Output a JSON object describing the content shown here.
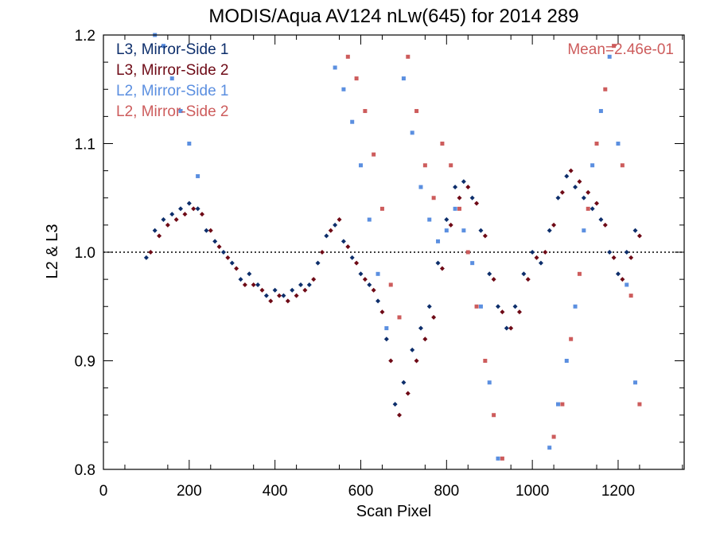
{
  "chart_data": {
    "type": "scatter",
    "title": "MODIS/Aqua AV124 nLw(645) for 2014 289",
    "xlabel": "Scan Pixel",
    "ylabel": "L2 & L3",
    "xlim": [
      0,
      1354
    ],
    "ylim": [
      0.8,
      1.2
    ],
    "xticks": [
      "0",
      "200",
      "400",
      "600",
      "800",
      "1000",
      "1200"
    ],
    "yticks": [
      "0.8",
      "0.9",
      "1.0",
      "1.1",
      "1.2"
    ],
    "reference_line": 1.0,
    "annotation": "Mean=2.46e-01",
    "annotation_color": "#cd5c5c",
    "legend_position": "top-left",
    "series": [
      {
        "name": "L3, Mirror-Side 1",
        "color": "#0d2e6b",
        "marker": "diamond",
        "x": [
          100,
          120,
          140,
          160,
          180,
          200,
          220,
          240,
          260,
          280,
          300,
          320,
          340,
          360,
          380,
          400,
          420,
          440,
          460,
          480,
          500,
          520,
          540,
          560,
          580,
          600,
          620,
          640,
          660,
          680,
          700,
          720,
          740,
          760,
          780,
          800,
          820,
          840,
          860,
          880,
          900,
          920,
          940,
          960,
          980,
          1000,
          1020,
          1040,
          1060,
          1080,
          1100,
          1120,
          1140,
          1160,
          1180,
          1200,
          1220,
          1240
        ],
        "y": [
          0.995,
          1.02,
          1.03,
          1.035,
          1.04,
          1.045,
          1.04,
          1.02,
          1.01,
          1.0,
          0.99,
          0.975,
          0.98,
          0.97,
          0.96,
          0.965,
          0.96,
          0.965,
          0.97,
          0.97,
          0.99,
          1.015,
          1.025,
          1.01,
          0.995,
          0.98,
          0.97,
          0.955,
          0.92,
          0.86,
          0.88,
          0.91,
          0.93,
          0.95,
          0.99,
          1.03,
          1.06,
          1.065,
          1.05,
          1.02,
          0.98,
          0.95,
          0.93,
          0.95,
          0.98,
          1.0,
          0.99,
          1.02,
          1.05,
          1.07,
          1.06,
          1.05,
          1.04,
          1.03,
          1.0,
          0.98,
          1.0,
          1.02
        ]
      },
      {
        "name": "L3, Mirror-Side 2",
        "color": "#6e0a16",
        "marker": "diamond",
        "x": [
          110,
          130,
          150,
          170,
          190,
          210,
          230,
          250,
          270,
          290,
          310,
          330,
          350,
          370,
          390,
          410,
          430,
          450,
          470,
          490,
          510,
          530,
          550,
          570,
          590,
          610,
          630,
          650,
          670,
          690,
          710,
          730,
          750,
          770,
          790,
          810,
          830,
          850,
          870,
          890,
          910,
          930,
          950,
          970,
          990,
          1010,
          1030,
          1050,
          1070,
          1090,
          1110,
          1130,
          1150,
          1170,
          1190,
          1210,
          1230,
          1250
        ],
        "y": [
          1.0,
          1.015,
          1.025,
          1.03,
          1.035,
          1.04,
          1.035,
          1.02,
          1.005,
          0.995,
          0.985,
          0.97,
          0.97,
          0.965,
          0.955,
          0.96,
          0.955,
          0.96,
          0.965,
          0.975,
          1.0,
          1.02,
          1.03,
          1.005,
          0.99,
          0.975,
          0.965,
          0.945,
          0.9,
          0.85,
          0.87,
          0.9,
          0.92,
          0.94,
          0.985,
          1.025,
          1.05,
          1.06,
          1.045,
          1.015,
          0.975,
          0.945,
          0.93,
          0.945,
          0.975,
          0.995,
          1.0,
          1.025,
          1.055,
          1.075,
          1.065,
          1.055,
          1.045,
          1.025,
          0.995,
          0.975,
          0.995,
          1.015
        ]
      },
      {
        "name": "L2, Mirror-Side 1",
        "color": "#5b8fe0",
        "marker": "square",
        "x": [
          120,
          140,
          160,
          180,
          200,
          220,
          540,
          560,
          580,
          600,
          620,
          640,
          660,
          700,
          720,
          740,
          760,
          780,
          800,
          820,
          840,
          860,
          880,
          900,
          920,
          1040,
          1060,
          1080,
          1100,
          1120,
          1140,
          1160,
          1180,
          1200,
          1220,
          1240
        ],
        "y": [
          1.2,
          1.19,
          1.16,
          1.13,
          1.1,
          1.07,
          1.17,
          1.15,
          1.12,
          1.08,
          1.03,
          0.98,
          0.93,
          1.16,
          1.11,
          1.06,
          1.03,
          1.01,
          1.02,
          1.04,
          1.02,
          0.99,
          0.95,
          0.88,
          0.81,
          0.82,
          0.86,
          0.9,
          0.95,
          1.02,
          1.08,
          1.13,
          1.18,
          1.1,
          0.97,
          0.88
        ]
      },
      {
        "name": "L2, Mirror-Side 2",
        "color": "#cd5c5c",
        "marker": "square",
        "x": [
          570,
          590,
          610,
          630,
          650,
          670,
          690,
          710,
          730,
          750,
          770,
          790,
          810,
          830,
          850,
          870,
          890,
          910,
          930,
          1050,
          1070,
          1090,
          1110,
          1130,
          1150,
          1170,
          1190,
          1210,
          1230,
          1250
        ],
        "y": [
          1.18,
          1.16,
          1.13,
          1.09,
          1.04,
          0.97,
          0.94,
          1.18,
          1.13,
          1.08,
          1.05,
          1.1,
          1.08,
          1.04,
          1.0,
          0.95,
          0.9,
          0.85,
          0.81,
          0.83,
          0.86,
          0.92,
          0.98,
          1.04,
          1.1,
          1.15,
          1.19,
          1.08,
          0.96,
          0.86
        ]
      }
    ]
  }
}
